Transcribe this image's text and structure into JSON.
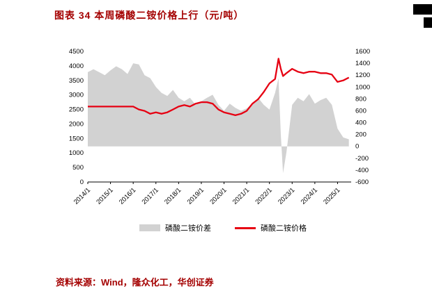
{
  "header": {
    "title": "图表 34   本周磷酸二铵价格上行（元/吨）"
  },
  "footer": {
    "source": "资料来源：Wind，隆众化工，华创证券"
  },
  "colors": {
    "accent": "#a40000",
    "line": "#e60012",
    "area": "#d2d2d2",
    "axis": "#000000"
  },
  "chart_data": {
    "type": "area+line",
    "title": "本周磷酸二铵价格上行（元/吨）",
    "legend_position": "bottom",
    "grid": false,
    "x_min": 2014,
    "x_max": 2025.6,
    "left_axis": {
      "min": 0,
      "max": 4500,
      "step": 500
    },
    "right_axis": {
      "min": -600,
      "max": 1600,
      "step": 200
    },
    "x_ticks": [
      {
        "x": 2014,
        "label": "2014/1"
      },
      {
        "x": 2015,
        "label": "2015/1"
      },
      {
        "x": 2016,
        "label": "2016/1"
      },
      {
        "x": 2017,
        "label": "2017/1"
      },
      {
        "x": 2018,
        "label": "2018/1"
      },
      {
        "x": 2019,
        "label": "2019/1"
      },
      {
        "x": 2020,
        "label": "2020/1"
      },
      {
        "x": 2021,
        "label": "2021/1"
      },
      {
        "x": 2022,
        "label": "2022/1"
      },
      {
        "x": 2023,
        "label": "2023/1"
      },
      {
        "x": 2024,
        "label": "2024/1"
      },
      {
        "x": 2025,
        "label": "2025/1"
      }
    ],
    "series": [
      {
        "name": "磷酸二铵价差",
        "type": "area",
        "axis": "right",
        "color": "#d2d2d2",
        "x": [
          2014.0,
          2014.25,
          2014.5,
          2014.75,
          2015.0,
          2015.25,
          2015.5,
          2015.75,
          2016.0,
          2016.25,
          2016.5,
          2016.75,
          2017.0,
          2017.25,
          2017.5,
          2017.75,
          2018.0,
          2018.25,
          2018.5,
          2018.75,
          2019.0,
          2019.25,
          2019.5,
          2019.75,
          2020.0,
          2020.25,
          2020.5,
          2020.75,
          2021.0,
          2021.25,
          2021.5,
          2021.75,
          2022.0,
          2022.25,
          2022.4,
          2022.5,
          2022.6,
          2022.75,
          2023.0,
          2023.25,
          2023.5,
          2023.75,
          2024.0,
          2024.25,
          2024.5,
          2024.75,
          2025.0,
          2025.25,
          2025.5
        ],
        "values": [
          1250,
          1300,
          1250,
          1200,
          1280,
          1350,
          1300,
          1220,
          1400,
          1380,
          1200,
          1150,
          1000,
          900,
          850,
          950,
          820,
          760,
          820,
          700,
          760,
          820,
          870,
          700,
          600,
          720,
          650,
          600,
          640,
          720,
          820,
          700,
          620,
          900,
          1150,
          200,
          -450,
          -100,
          700,
          820,
          760,
          880,
          720,
          780,
          820,
          700,
          300,
          150,
          120
        ]
      },
      {
        "name": "磷酸二铵价格",
        "type": "line",
        "axis": "left",
        "color": "#e60012",
        "x": [
          2014.0,
          2014.25,
          2014.5,
          2014.75,
          2015.0,
          2015.25,
          2015.5,
          2015.75,
          2016.0,
          2016.25,
          2016.5,
          2016.75,
          2017.0,
          2017.25,
          2017.5,
          2017.75,
          2018.0,
          2018.25,
          2018.5,
          2018.75,
          2019.0,
          2019.25,
          2019.5,
          2019.75,
          2020.0,
          2020.25,
          2020.5,
          2020.75,
          2021.0,
          2021.25,
          2021.5,
          2021.75,
          2022.0,
          2022.25,
          2022.4,
          2022.5,
          2022.6,
          2022.75,
          2023.0,
          2023.25,
          2023.5,
          2023.75,
          2024.0,
          2024.25,
          2024.5,
          2024.75,
          2025.0,
          2025.25,
          2025.5
        ],
        "values": [
          2600,
          2600,
          2600,
          2600,
          2600,
          2600,
          2600,
          2600,
          2600,
          2500,
          2450,
          2350,
          2400,
          2350,
          2400,
          2500,
          2600,
          2650,
          2600,
          2700,
          2750,
          2750,
          2700,
          2500,
          2400,
          2350,
          2300,
          2350,
          2450,
          2700,
          2850,
          3100,
          3400,
          3550,
          4250,
          3900,
          3650,
          3750,
          3900,
          3800,
          3750,
          3800,
          3800,
          3750,
          3750,
          3700,
          3450,
          3500,
          3600
        ]
      }
    ]
  }
}
